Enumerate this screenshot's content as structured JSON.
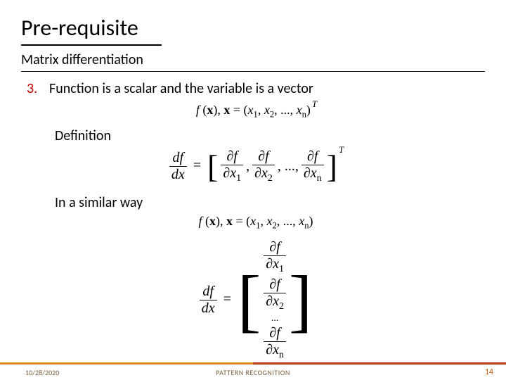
{
  "title": "Pre-requisite",
  "subtitle": "Matrix differentiation",
  "list": {
    "number": "3.",
    "text": "Function is a scalar and the variable is a vector"
  },
  "labels": {
    "definition": "Definition",
    "similar": "In a similar way"
  },
  "formulas": {
    "f1_fxn": "f",
    "f1_x": "x",
    "f1_open": "(",
    "f1_close": ")",
    "f1_comma": ",",
    "f1_eq": "=",
    "f1_elems": [
      "x",
      "x",
      "x"
    ],
    "f1_subs": [
      "1",
      "2",
      "n"
    ],
    "f1_dots": ", ...,",
    "f1_sup": "T",
    "f2_df": "df",
    "f2_dx": "dx",
    "f2_eq": "=",
    "f2_pf": "∂f",
    "f2_px": "∂x",
    "f2_subs": [
      "1",
      "2",
      "n"
    ],
    "f2_dots": ", ...,",
    "f2_comma": ",",
    "f2_sup": "T",
    "f3_fxn": "f",
    "f3_x": "x",
    "f3_open": "(",
    "f3_close": ")",
    "f3_comma": ",",
    "f3_eq": "=",
    "f3_elems": [
      "x",
      "x",
      "x"
    ],
    "f3_subs": [
      "1",
      "2",
      "n"
    ],
    "f3_dots": ", ...,",
    "f4_df": "df",
    "f4_dx": "dx",
    "f4_eq": "=",
    "f4_pf": "∂f",
    "f4_px": "∂x",
    "f4_subs": [
      "1",
      "2",
      "n"
    ],
    "f4_dots": "..."
  },
  "footer": {
    "date": "10/28/2020",
    "center": "PATTERN RECOGNITION",
    "page": "14"
  },
  "colors": {
    "accent_number": "#c00000",
    "bar_left": "#e38b20",
    "bar_right": "#b53718",
    "footer_text": "#7a5c3a",
    "page_number": "#c55a11",
    "background": "#ffffff"
  },
  "fonts": {
    "title_size_pt": 32,
    "body_size_pt": 20,
    "formula_family": "Times New Roman",
    "body_family": "Calibri"
  }
}
